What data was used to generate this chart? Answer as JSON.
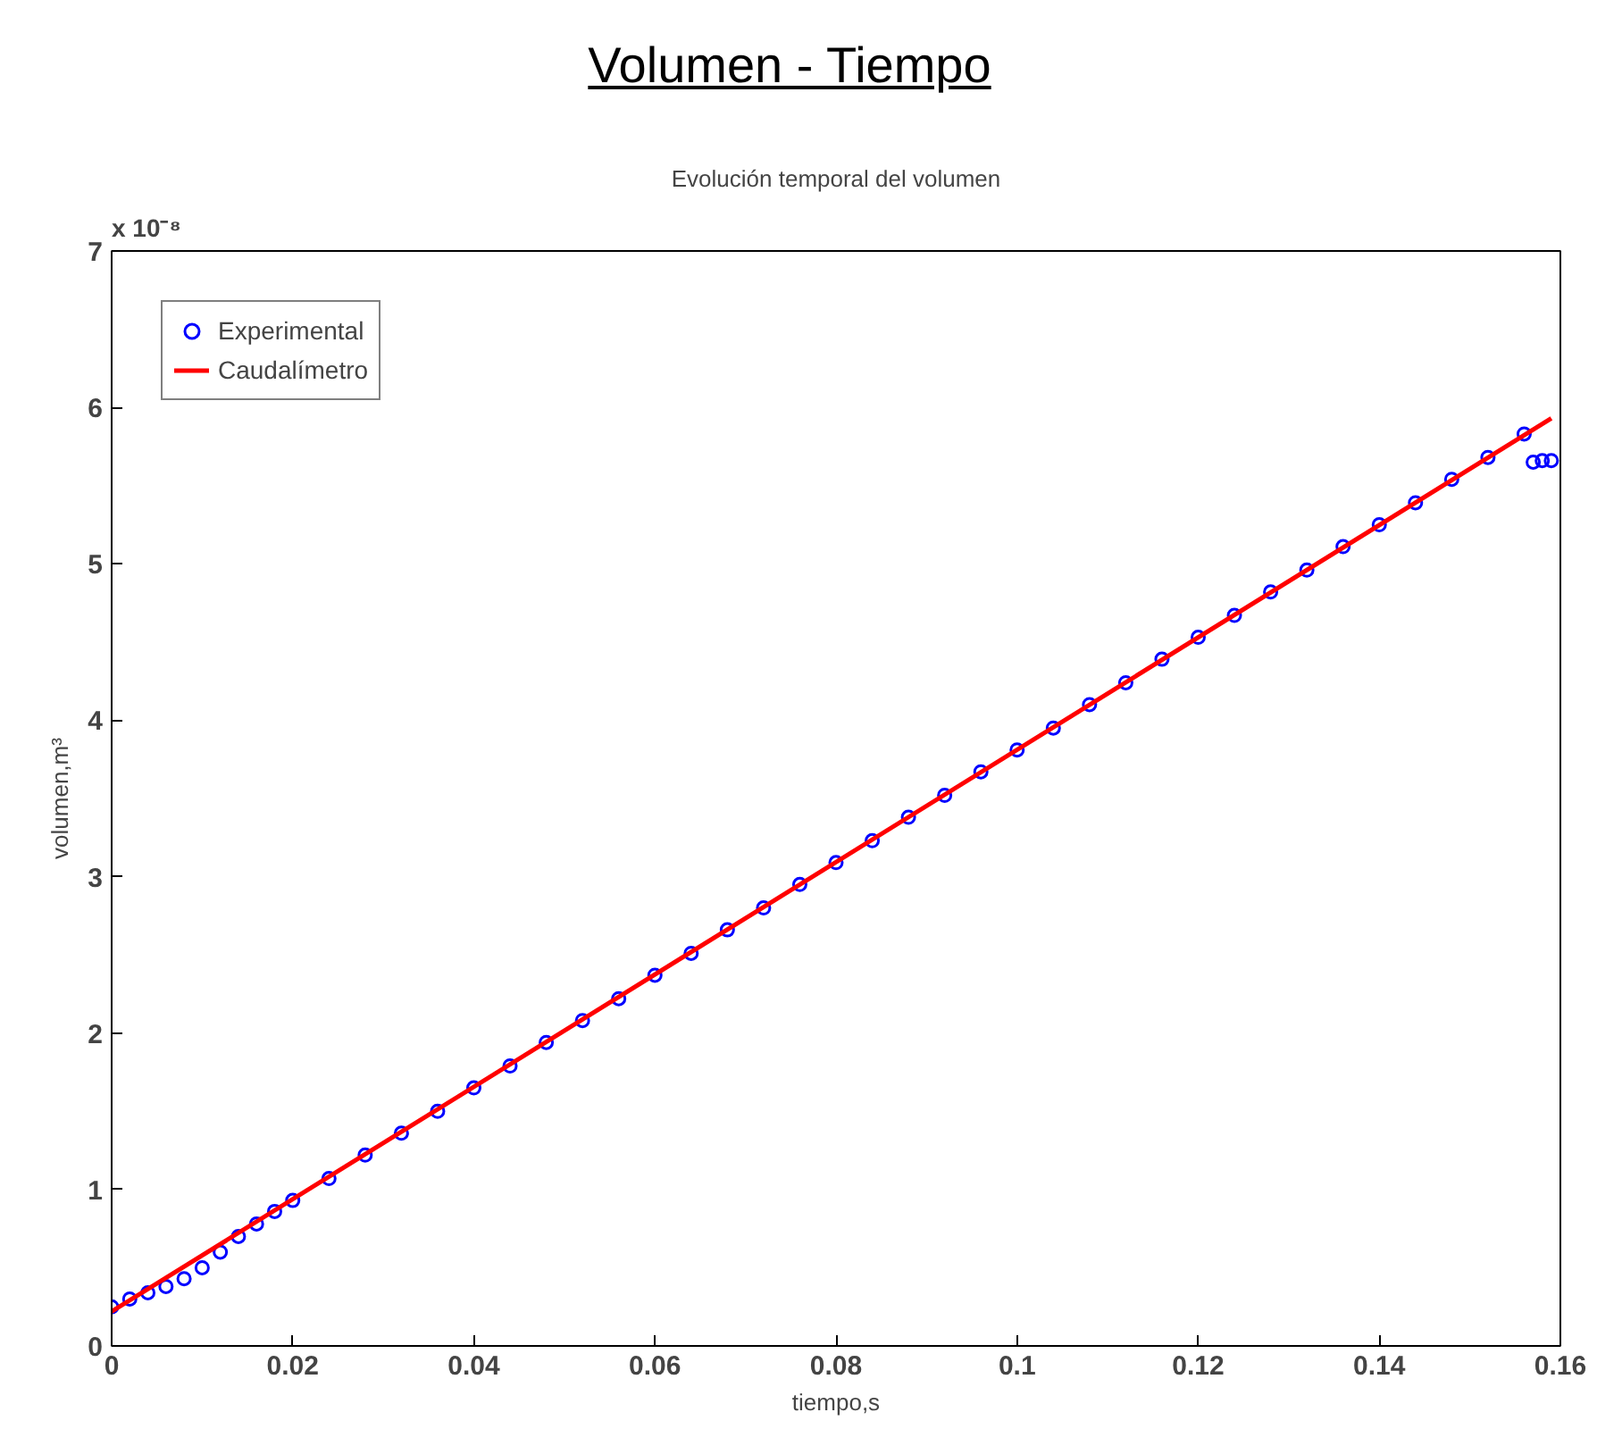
{
  "chart_data": {
    "type": "scatter",
    "title": "Volumen - Tiempo",
    "subtitle": "Evolución temporal del volumen",
    "xlabel": "tiempo,s",
    "ylabel": "volumen,m³",
    "annotations": [
      "x 10⁻⁸"
    ],
    "xlim": [
      0,
      0.16
    ],
    "xticks": [
      0,
      0.02,
      0.04,
      0.06,
      0.08,
      0.1,
      0.12,
      0.14,
      0.16
    ],
    "ylim": [
      0,
      7
    ],
    "yticks": [
      0,
      1,
      2,
      3,
      4,
      5,
      6,
      7
    ],
    "grid": false,
    "legend": "top left",
    "series": [
      {
        "name": "Experimental",
        "marker": "circle",
        "color": "#0000ff",
        "x": [
          0,
          0.002,
          0.004,
          0.006,
          0.008,
          0.01,
          0.012,
          0.014,
          0.016,
          0.018,
          0.02,
          0.024,
          0.028,
          0.032,
          0.036,
          0.04,
          0.044,
          0.048,
          0.052,
          0.056,
          0.06,
          0.064,
          0.068,
          0.072,
          0.076,
          0.08,
          0.084,
          0.088,
          0.092,
          0.096,
          0.1,
          0.104,
          0.108,
          0.112,
          0.116,
          0.12,
          0.124,
          0.128,
          0.132,
          0.136,
          0.14,
          0.144,
          0.148,
          0.152,
          0.156,
          0.157,
          0.158,
          0.159
        ],
        "values": [
          0.25,
          0.3,
          0.34,
          0.38,
          0.43,
          0.5,
          0.6,
          0.7,
          0.78,
          0.86,
          0.93,
          1.07,
          1.22,
          1.36,
          1.5,
          1.65,
          1.79,
          1.94,
          2.08,
          2.22,
          2.37,
          2.51,
          2.66,
          2.8,
          2.95,
          3.09,
          3.23,
          3.38,
          3.52,
          3.67,
          3.81,
          3.95,
          4.1,
          4.24,
          4.39,
          4.53,
          4.67,
          4.82,
          4.96,
          5.11,
          5.25,
          5.39,
          5.54,
          5.68,
          5.83,
          5.65,
          5.66,
          5.66
        ]
      },
      {
        "name": "Caudalímetro",
        "type": "line",
        "color": "#ff0000",
        "line_style": "solid",
        "x": [
          0,
          0.159
        ],
        "values": [
          0.22,
          5.93
        ]
      }
    ]
  }
}
